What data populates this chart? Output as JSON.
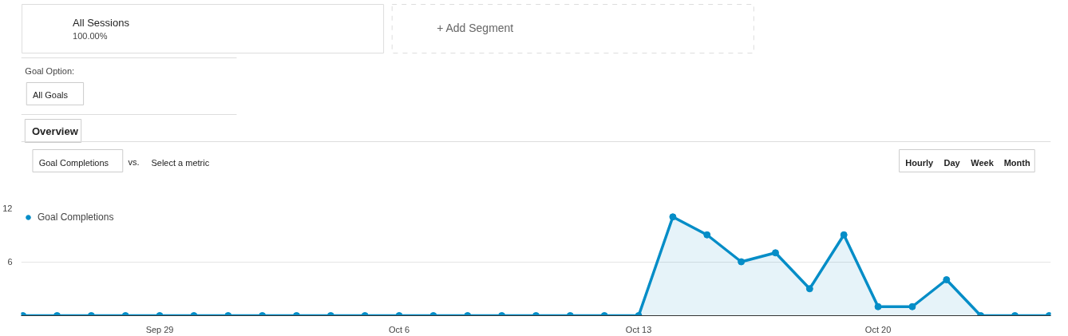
{
  "chart_data": {
    "type": "area",
    "categories": [
      null,
      null,
      null,
      null,
      "Sep 29",
      null,
      null,
      null,
      null,
      null,
      null,
      "Oct 6",
      null,
      null,
      null,
      null,
      null,
      null,
      "Oct 13",
      null,
      null,
      null,
      null,
      null,
      null,
      "Oct 20",
      null,
      null,
      null,
      null,
      null
    ],
    "series": [
      {
        "name": "Goal Completions",
        "color": "#058dc7",
        "values": [
          0,
          0,
          0,
          0,
          0,
          0,
          0,
          0,
          0,
          0,
          0,
          0,
          0,
          0,
          0,
          0,
          0,
          0,
          0,
          11,
          9,
          6,
          7,
          3,
          9,
          1,
          1,
          4,
          0,
          0,
          0
        ]
      }
    ],
    "ylim": [
      0,
      12
    ],
    "yticks": [
      6,
      12
    ],
    "grid": "y",
    "legend": "top left",
    "marker": "circle",
    "line_style": "solid",
    "annotations": [
      "All Sessions",
      "100.00%",
      "+ Add Segment",
      "Goal Option:",
      "All Goals",
      "Overview",
      "Goal Completions",
      "vs.",
      "Select a metric",
      "Hourly",
      "Day",
      "Week",
      "Month"
    ]
  }
}
